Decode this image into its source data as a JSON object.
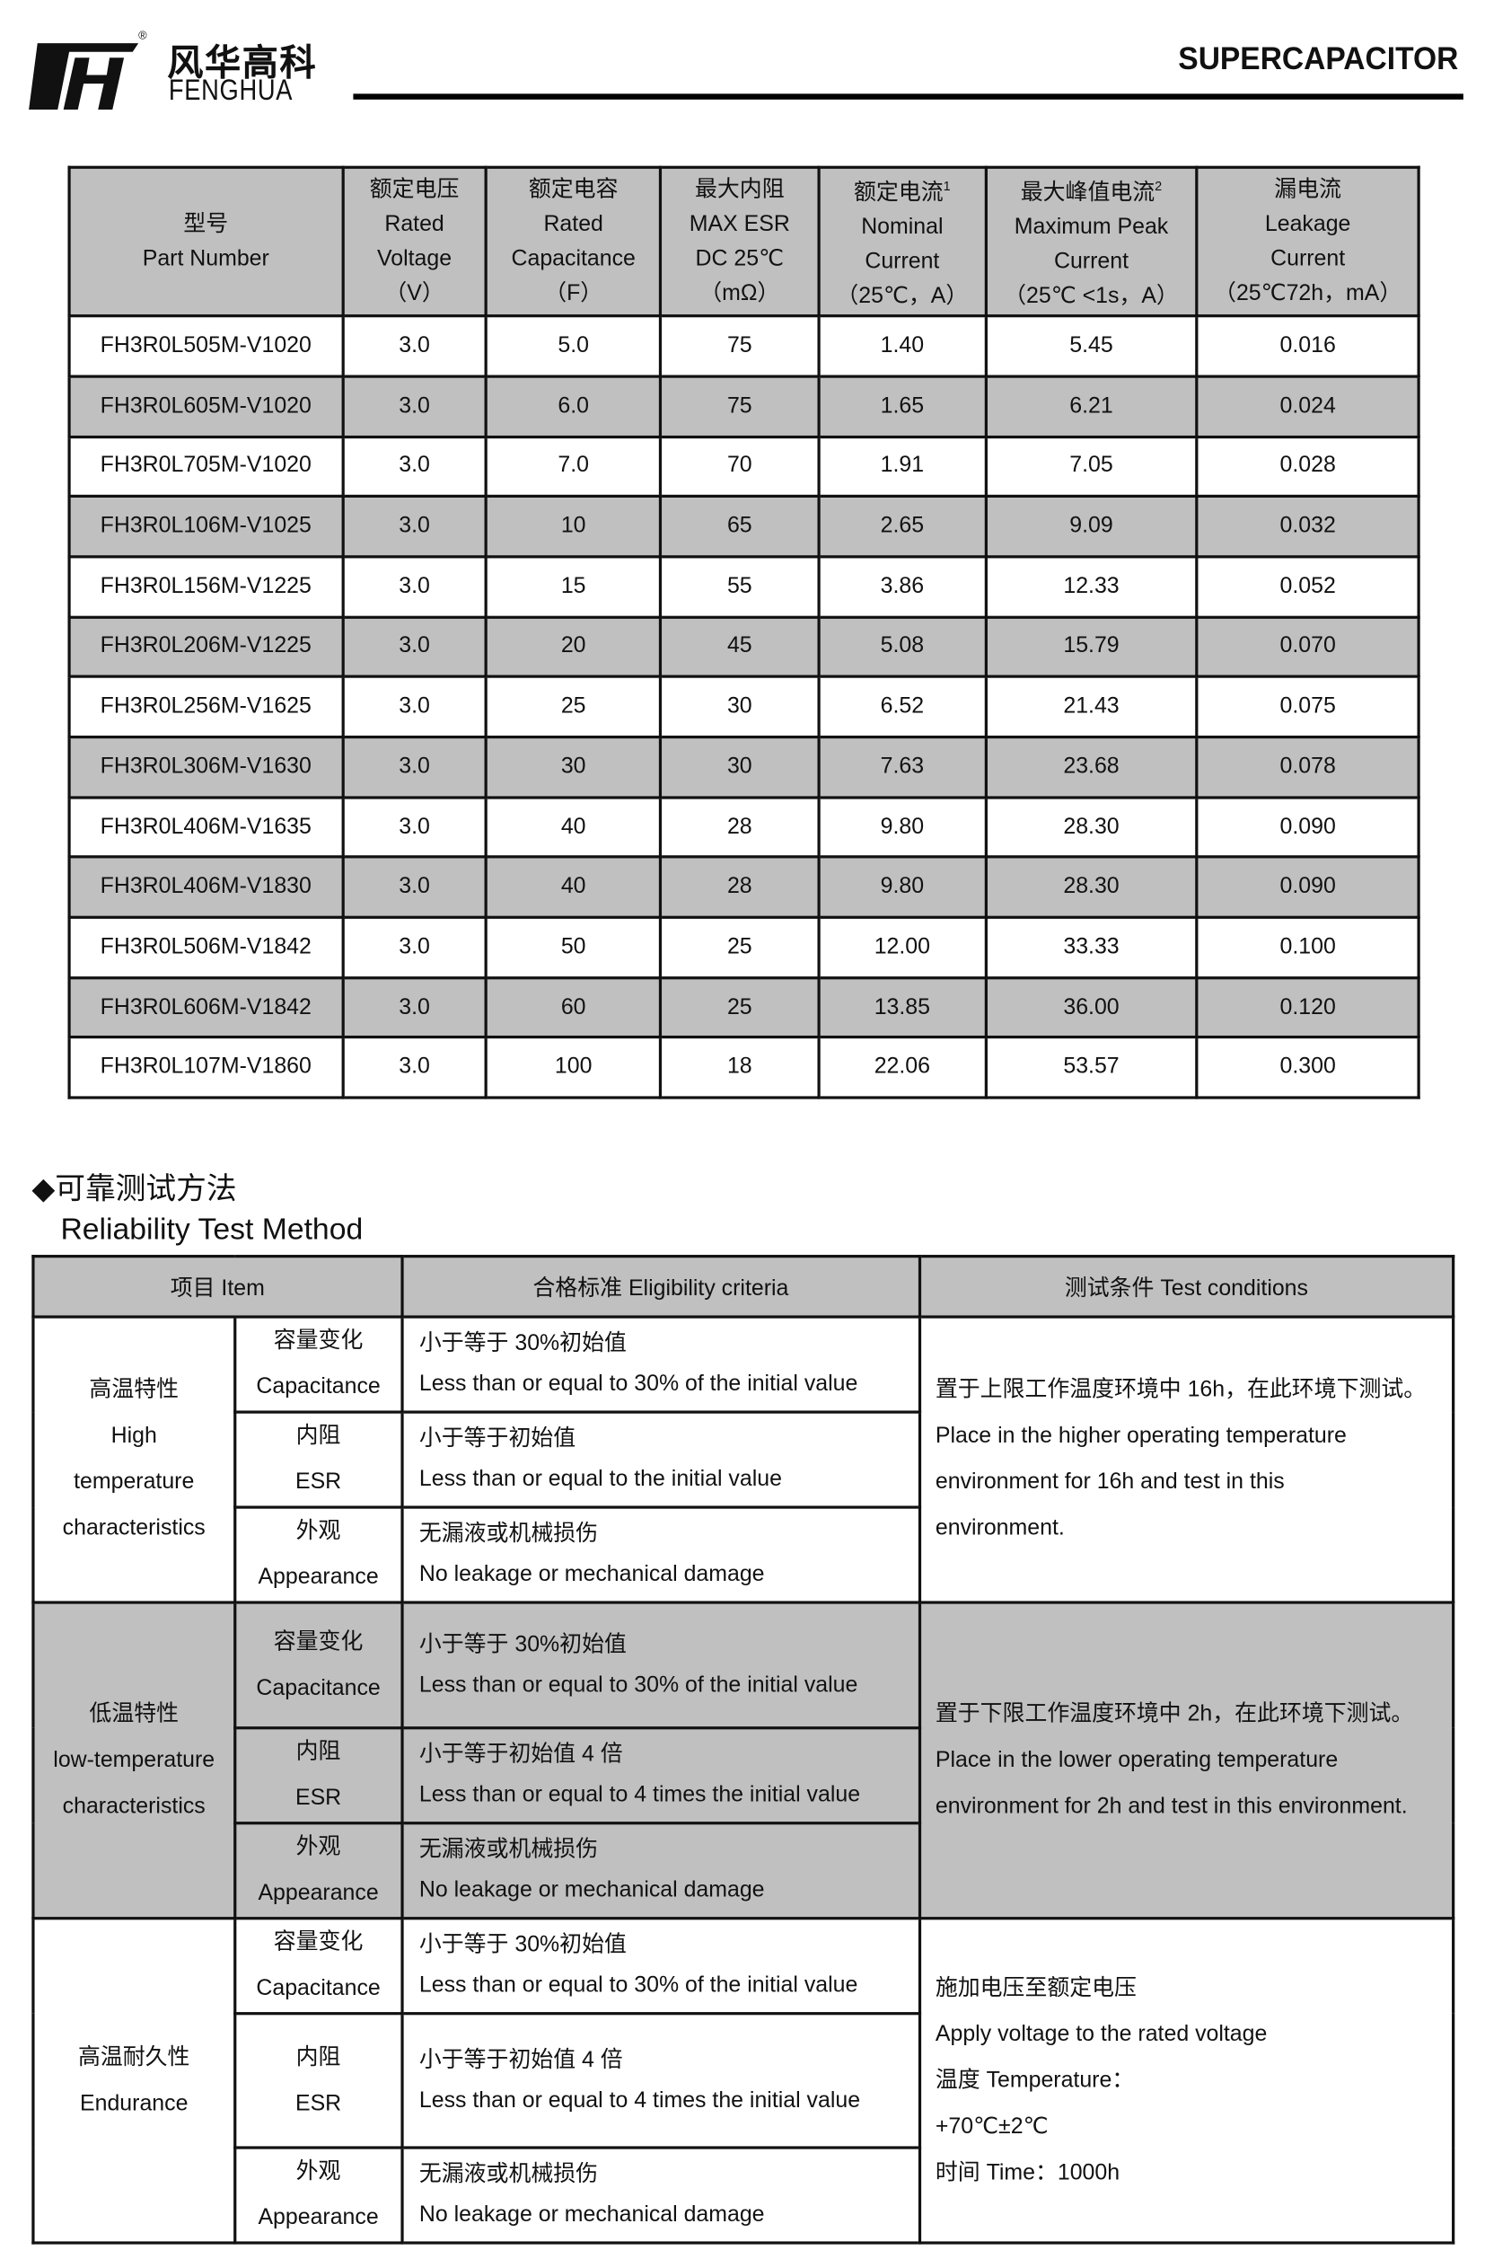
{
  "header": {
    "brand_cn": "风华高科",
    "brand_en": "FENGHUA",
    "registered": "®",
    "title": "SUPERCAPACITOR"
  },
  "spec_table": {
    "columns": [
      {
        "cn": "型号",
        "en": [
          "Part Number"
        ]
      },
      {
        "cn": "额定电压",
        "en": [
          "Rated",
          "Voltage",
          "（V）"
        ]
      },
      {
        "cn": "额定电容",
        "en": [
          "Rated",
          "Capacitance",
          "（F）"
        ]
      },
      {
        "cn": "最大内阻",
        "en": [
          "MAX ESR",
          "DC 25℃",
          "（mΩ）"
        ]
      },
      {
        "cn": "额定电流",
        "sup": "1",
        "en": [
          "Nominal",
          "Current",
          "（25℃，A）"
        ]
      },
      {
        "cn": "最大峰值电流",
        "sup": "2",
        "en": [
          "Maximum Peak",
          "Current",
          "（25℃ <1s，A）"
        ]
      },
      {
        "cn": "漏电流",
        "en": [
          "Leakage",
          "Current",
          "（25℃72h，mA）"
        ]
      }
    ],
    "rows": [
      [
        "FH3R0L505M-V1020",
        "3.0",
        "5.0",
        "75",
        "1.40",
        "5.45",
        "0.016"
      ],
      [
        "FH3R0L605M-V1020",
        "3.0",
        "6.0",
        "75",
        "1.65",
        "6.21",
        "0.024"
      ],
      [
        "FH3R0L705M-V1020",
        "3.0",
        "7.0",
        "70",
        "1.91",
        "7.05",
        "0.028"
      ],
      [
        "FH3R0L106M-V1025",
        "3.0",
        "10",
        "65",
        "2.65",
        "9.09",
        "0.032"
      ],
      [
        "FH3R0L156M-V1225",
        "3.0",
        "15",
        "55",
        "3.86",
        "12.33",
        "0.052"
      ],
      [
        "FH3R0L206M-V1225",
        "3.0",
        "20",
        "45",
        "5.08",
        "15.79",
        "0.070"
      ],
      [
        "FH3R0L256M-V1625",
        "3.0",
        "25",
        "30",
        "6.52",
        "21.43",
        "0.075"
      ],
      [
        "FH3R0L306M-V1630",
        "3.0",
        "30",
        "30",
        "7.63",
        "23.68",
        "0.078"
      ],
      [
        "FH3R0L406M-V1635",
        "3.0",
        "40",
        "28",
        "9.80",
        "28.30",
        "0.090"
      ],
      [
        "FH3R0L406M-V1830",
        "3.0",
        "40",
        "28",
        "9.80",
        "28.30",
        "0.090"
      ],
      [
        "FH3R0L506M-V1842",
        "3.0",
        "50",
        "25",
        "12.00",
        "33.33",
        "0.100"
      ],
      [
        "FH3R0L606M-V1842",
        "3.0",
        "60",
        "25",
        "13.85",
        "36.00",
        "0.120"
      ],
      [
        "FH3R0L107M-V1860",
        "3.0",
        "100",
        "18",
        "22.06",
        "53.57",
        "0.300"
      ]
    ]
  },
  "section": {
    "bullet": "◆",
    "title_cn": "可靠测试方法",
    "title_en": "Reliability Test Method"
  },
  "reliability": {
    "headers": [
      "项目 Item",
      "合格标准 Eligibility criteria",
      "测试条件 Test conditions"
    ],
    "groups": [
      {
        "name": [
          "高温特性",
          "High",
          "temperature",
          "characteristics"
        ],
        "items": [
          {
            "sub": [
              "容量变化",
              "Capacitance"
            ],
            "crit": [
              "小于等于 30%初始值",
              "Less than or equal to 30% of the initial value"
            ]
          },
          {
            "sub": [
              "内阻",
              "ESR"
            ],
            "crit": [
              "小于等于初始值",
              "Less than or equal to the initial value"
            ]
          },
          {
            "sub": [
              "外观",
              "Appearance"
            ],
            "crit": [
              "无漏液或机械损伤",
              "No leakage or mechanical damage"
            ]
          }
        ],
        "cond": [
          "置于上限工作温度环境中 16h，在此环境下测试。",
          "Place in the higher operating temperature",
          "environment for 16h and test in this",
          "environment."
        ]
      },
      {
        "name": [
          "低温特性",
          "low-temperature",
          "characteristics"
        ],
        "items": [
          {
            "sub": [
              "容量变化",
              "Capacitance"
            ],
            "crit": [
              "小于等于 30%初始值",
              "Less than or equal to 30% of the initial value"
            ]
          },
          {
            "sub": [
              "内阻",
              "ESR"
            ],
            "crit": [
              "小于等于初始值 4 倍",
              "Less than or equal to 4 times the initial value"
            ]
          },
          {
            "sub": [
              "外观",
              "Appearance"
            ],
            "crit": [
              "无漏液或机械损伤",
              "No leakage or mechanical damage"
            ]
          }
        ],
        "cond": [
          "置于下限工作温度环境中 2h，在此环境下测试。",
          "Place in the lower operating temperature",
          "environment for 2h and test in this environment."
        ]
      },
      {
        "name": [
          "高温耐久性",
          "Endurance"
        ],
        "items": [
          {
            "sub": [
              "容量变化",
              "Capacitance"
            ],
            "crit": [
              "小于等于 30%初始值",
              "Less than or equal to 30% of the initial value"
            ]
          },
          {
            "sub": [
              "内阻",
              "ESR"
            ],
            "crit": [
              "小于等于初始值 4 倍",
              "Less than or equal to 4 times the initial value"
            ]
          },
          {
            "sub": [
              "外观",
              "Appearance"
            ],
            "crit": [
              "无漏液或机械损伤",
              "No leakage or mechanical damage"
            ]
          }
        ],
        "cond": [
          "施加电压至额定电压",
          "Apply voltage to the rated voltage",
          "温度 Temperature：",
          "+70℃±2℃",
          "时间 Time：1000h"
        ]
      }
    ]
  }
}
